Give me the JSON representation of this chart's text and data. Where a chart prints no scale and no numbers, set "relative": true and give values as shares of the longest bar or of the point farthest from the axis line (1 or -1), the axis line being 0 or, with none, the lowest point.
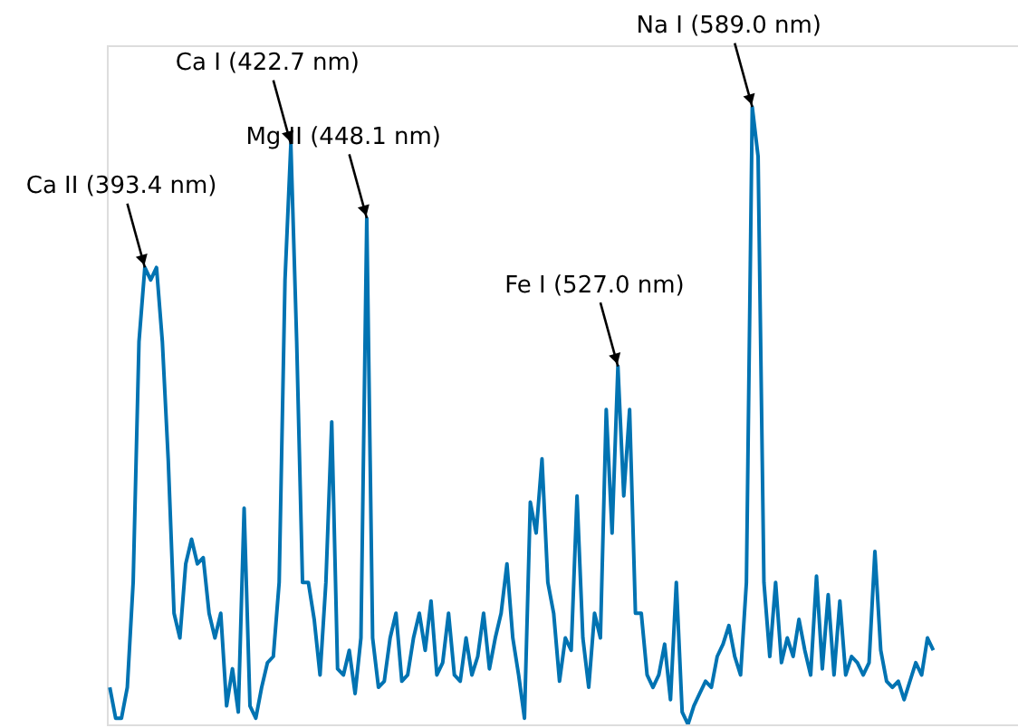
{
  "chart_data": {
    "type": "line",
    "relative": true,
    "categories": [
      null,
      null,
      null,
      null,
      null,
      null,
      null,
      null,
      null,
      null,
      null,
      null,
      null,
      null,
      null,
      null,
      null,
      null,
      null,
      null,
      null,
      null,
      null,
      null,
      null,
      null,
      null,
      null,
      null,
      null,
      null,
      null,
      null,
      null,
      null,
      null,
      null,
      null,
      null,
      null,
      null,
      null,
      null,
      null,
      null,
      null,
      null,
      null,
      null,
      null,
      null,
      null,
      null,
      null,
      null,
      null,
      null,
      null,
      null,
      null,
      null,
      null,
      null,
      null,
      null,
      null,
      null,
      null,
      null,
      null,
      null,
      null,
      null,
      null,
      null,
      null,
      null,
      null,
      null,
      null,
      null,
      null,
      null,
      null,
      null,
      null,
      null,
      null,
      null,
      null,
      null,
      null,
      null,
      null,
      null,
      null,
      null,
      null,
      null,
      null,
      null,
      null,
      null,
      null,
      null,
      null,
      null,
      null,
      null,
      null,
      null,
      null,
      null,
      null,
      null,
      null,
      null,
      null,
      null,
      null,
      null,
      null,
      null,
      null,
      null,
      null,
      null,
      null,
      null,
      null,
      null,
      null,
      null,
      null,
      null,
      null,
      null,
      null,
      null,
      null,
      null,
      null,
      null,
      null,
      null,
      null,
      null,
      null,
      null,
      null,
      null,
      null,
      null,
      null,
      null,
      null
    ],
    "series": [
      {
        "color": "#0173b2",
        "values": [
          0.06,
          0.01,
          0.01,
          0.06,
          0.23,
          0.62,
          0.74,
          0.72,
          0.74,
          0.62,
          0.43,
          0.18,
          0.14,
          0.26,
          0.3,
          0.26,
          0.27,
          0.18,
          0.14,
          0.18,
          0.03,
          0.09,
          0.02,
          0.35,
          0.03,
          0.01,
          0.06,
          0.1,
          0.11,
          0.23,
          0.72,
          0.94,
          0.62,
          0.23,
          0.23,
          0.17,
          0.08,
          0.23,
          0.49,
          0.09,
          0.08,
          0.12,
          0.05,
          0.14,
          0.82,
          0.14,
          0.06,
          0.07,
          0.14,
          0.18,
          0.07,
          0.08,
          0.14,
          0.18,
          0.12,
          0.2,
          0.08,
          0.1,
          0.18,
          0.08,
          0.07,
          0.14,
          0.08,
          0.11,
          0.18,
          0.09,
          0.14,
          0.18,
          0.26,
          0.14,
          0.08,
          0.01,
          0.36,
          0.31,
          0.43,
          0.23,
          0.18,
          0.07,
          0.14,
          0.12,
          0.37,
          0.14,
          0.06,
          0.18,
          0.14,
          0.51,
          0.31,
          0.58,
          0.37,
          0.51,
          0.18,
          0.18,
          0.08,
          0.06,
          0.08,
          0.13,
          0.04,
          0.23,
          0.02,
          0.0,
          0.03,
          0.05,
          0.07,
          0.06,
          0.11,
          0.13,
          0.16,
          0.11,
          0.08,
          0.23,
          1.0,
          0.92,
          0.23,
          0.11,
          0.23,
          0.1,
          0.14,
          0.11,
          0.17,
          0.12,
          0.08,
          0.24,
          0.09,
          0.21,
          0.08,
          0.2,
          0.08,
          0.11,
          0.1,
          0.08,
          0.1,
          0.28,
          0.12,
          0.07,
          0.06,
          0.07,
          0.04,
          0.07,
          0.1,
          0.08,
          0.14,
          0.12,
          null,
          null,
          null,
          null,
          null,
          null,
          null,
          null,
          null,
          null,
          null,
          null,
          null,
          null
        ]
      }
    ],
    "annotations": [
      "Ca II (393.4 nm)",
      "Ca I (422.7 nm)",
      "Mg II (448.1 nm)",
      "Fe I (527.0 nm)",
      "Na I (589.0 nm)"
    ]
  }
}
